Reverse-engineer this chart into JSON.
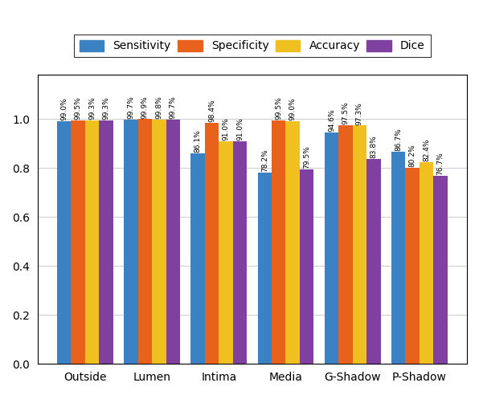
{
  "categories": [
    "Outside",
    "Lumen",
    "Intima",
    "Media",
    "G-Shadow",
    "P-Shadow"
  ],
  "metrics": [
    "Sensitivity",
    "Specificity",
    "Accuracy",
    "Dice"
  ],
  "colors": [
    "#3b82c4",
    "#e8621c",
    "#f0c020",
    "#8040a0"
  ],
  "values": {
    "Sensitivity": [
      0.99,
      0.997,
      0.861,
      0.782,
      0.946,
      0.867
    ],
    "Specificity": [
      0.995,
      0.999,
      0.984,
      0.995,
      0.975,
      0.802
    ],
    "Accuracy": [
      0.993,
      0.998,
      0.91,
      0.99,
      0.973,
      0.824
    ],
    "Dice": [
      0.993,
      0.997,
      0.91,
      0.795,
      0.838,
      0.767
    ]
  },
  "labels": {
    "Sensitivity": [
      "99.0%",
      "99.7%",
      "86.1%",
      "78.2%",
      "94.6%",
      "86.7%"
    ],
    "Specificity": [
      "99.5%",
      "99.9%",
      "98.4%",
      "99.5%",
      "97.5%",
      "80.2%"
    ],
    "Accuracy": [
      "99.3%",
      "99.8%",
      "91.0%",
      "99.0%",
      "97.3%",
      "82.4%"
    ],
    "Dice": [
      "99.3%",
      "99.7%",
      "91.0%",
      "79.5%",
      "83.8%",
      "76.7%"
    ]
  },
  "yticks": [
    0,
    0.2,
    0.4,
    0.6,
    0.8,
    1.0
  ],
  "bar_width": 0.21,
  "figsize": [
    5.96,
    4.92
  ],
  "dpi": 100,
  "label_fontsize": 6.5,
  "tick_fontsize": 10,
  "legend_fontsize": 10,
  "xticklabel_fontsize": 10
}
